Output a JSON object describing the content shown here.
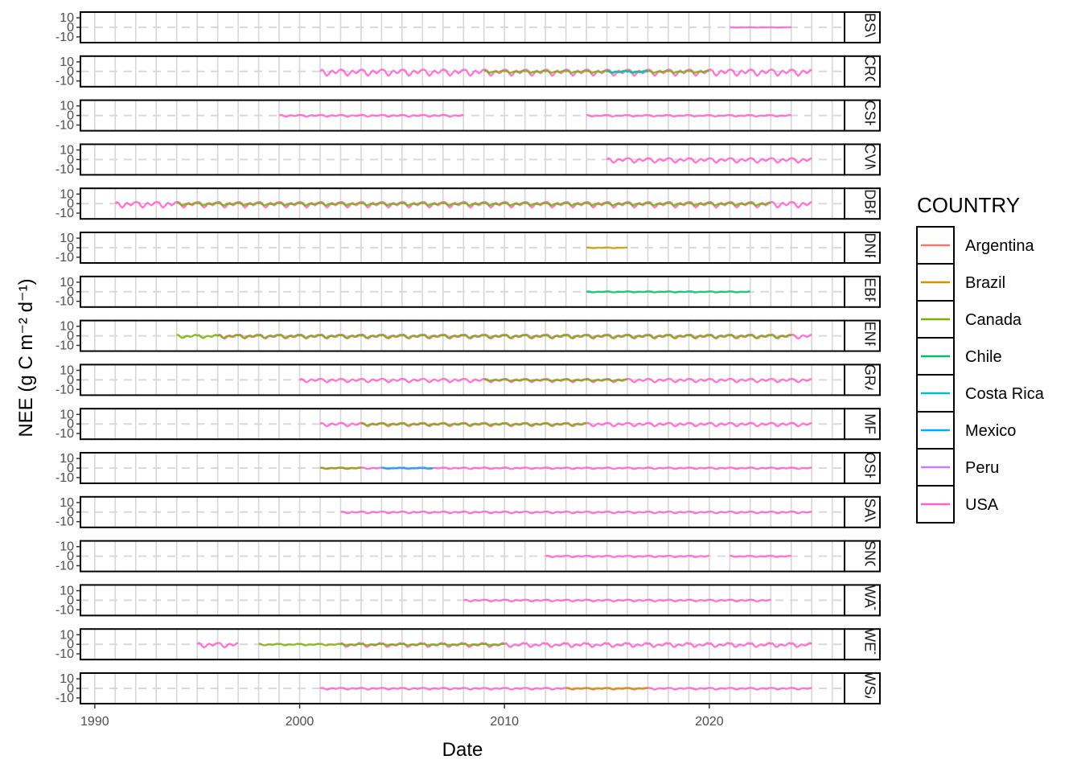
{
  "chart_data": {
    "type": "line",
    "facet_by": "vegetation_type",
    "facets": [
      "BSV",
      "CRO",
      "CSH",
      "CVM",
      "DBF",
      "DNF",
      "EBF",
      "ENF",
      "GRA",
      "MF",
      "OSH",
      "SAV",
      "SNO",
      "WAT",
      "WET",
      "WSA"
    ],
    "xlabel": "Date",
    "ylabel": "NEE (g C m⁻² d⁻¹)",
    "xlim": [
      1989.3,
      2026.6
    ],
    "x_ticks": [
      1990,
      2000,
      2010,
      2020
    ],
    "x_tick_labels": [
      "1990",
      "2000",
      "2010",
      "2020"
    ],
    "ylim": [
      -16,
      16
    ],
    "y_ticks": [
      10,
      0,
      -10
    ],
    "y_tick_labels": [
      "10",
      "0",
      "-10"
    ],
    "reference_line_y": 0,
    "grid": true,
    "legend": {
      "title": "COUNTRY",
      "position": "right",
      "entries": [
        {
          "name": "Argentina",
          "color": "#F8766D"
        },
        {
          "name": "Brazil",
          "color": "#CD9600"
        },
        {
          "name": "Canada",
          "color": "#7CAE00"
        },
        {
          "name": "Chile",
          "color": "#00BE67"
        },
        {
          "name": "Costa Rica",
          "color": "#00BFC4"
        },
        {
          "name": "Mexico",
          "color": "#00A9FF"
        },
        {
          "name": "Peru",
          "color": "#C77CFF"
        },
        {
          "name": "USA",
          "color": "#FF61CC"
        }
      ]
    },
    "series": [
      {
        "facet": "BSV",
        "country": "USA",
        "segments": [
          [
            2021.0,
            2024.0
          ]
        ],
        "amplitude": 0.3
      },
      {
        "facet": "CRO",
        "country": "USA",
        "segments": [
          [
            2001.0,
            2025.0
          ]
        ],
        "amplitude": 5.5
      },
      {
        "facet": "CRO",
        "country": "Canada",
        "segments": [
          [
            2009.0,
            2020.0
          ]
        ],
        "amplitude": 2.0
      },
      {
        "facet": "CRO",
        "country": "Costa Rica",
        "segments": [
          [
            2015.0,
            2017.0
          ]
        ],
        "amplitude": 2.0
      },
      {
        "facet": "CSH",
        "country": "USA",
        "segments": [
          [
            1999.0,
            2008.0
          ],
          [
            2014.0,
            2024.0
          ]
        ],
        "amplitude": 1.5
      },
      {
        "facet": "CVM",
        "country": "USA",
        "segments": [
          [
            2015.0,
            2025.0
          ]
        ],
        "amplitude": 4.0
      },
      {
        "facet": "DBF",
        "country": "USA",
        "segments": [
          [
            1991.0,
            2025.0
          ]
        ],
        "amplitude": 5.0
      },
      {
        "facet": "DBF",
        "country": "Canada",
        "segments": [
          [
            1994.0,
            2023.0
          ]
        ],
        "amplitude": 2.5
      },
      {
        "facet": "DNF",
        "country": "Brazil",
        "segments": [
          [
            2014.0,
            2016.0
          ]
        ],
        "amplitude": 0.6
      },
      {
        "facet": "EBF",
        "country": "Chile",
        "segments": [
          [
            2014.0,
            2022.0
          ]
        ],
        "amplitude": 0.8
      },
      {
        "facet": "ENF",
        "country": "USA",
        "segments": [
          [
            1996.0,
            2025.0
          ]
        ],
        "amplitude": 3.5
      },
      {
        "facet": "ENF",
        "country": "Canada",
        "segments": [
          [
            1994.0,
            2024.0
          ]
        ],
        "amplitude": 3.0
      },
      {
        "facet": "GRA",
        "country": "USA",
        "segments": [
          [
            2000.0,
            2025.0
          ]
        ],
        "amplitude": 3.0
      },
      {
        "facet": "GRA",
        "country": "Canada",
        "segments": [
          [
            2009.0,
            2016.0
          ]
        ],
        "amplitude": 1.5
      },
      {
        "facet": "MF",
        "country": "USA",
        "segments": [
          [
            2001.0,
            2025.0
          ]
        ],
        "amplitude": 3.0
      },
      {
        "facet": "MF",
        "country": "Canada",
        "segments": [
          [
            2003.0,
            2014.0
          ]
        ],
        "amplitude": 2.0
      },
      {
        "facet": "OSH",
        "country": "USA",
        "segments": [
          [
            2001.0,
            2025.0
          ]
        ],
        "amplitude": 1.2
      },
      {
        "facet": "OSH",
        "country": "Canada",
        "segments": [
          [
            2001.0,
            2003.0
          ]
        ],
        "amplitude": 1.0
      },
      {
        "facet": "OSH",
        "country": "Mexico",
        "segments": [
          [
            2004.0,
            2006.5
          ]
        ],
        "amplitude": 1.0
      },
      {
        "facet": "SAV",
        "country": "USA",
        "segments": [
          [
            2002.0,
            2025.0
          ]
        ],
        "amplitude": 1.5
      },
      {
        "facet": "SNO",
        "country": "USA",
        "segments": [
          [
            2012.0,
            2020.0
          ],
          [
            2021.0,
            2024.0
          ]
        ],
        "amplitude": 1.2
      },
      {
        "facet": "WAT",
        "country": "USA",
        "segments": [
          [
            2008.0,
            2023.0
          ]
        ],
        "amplitude": 1.5
      },
      {
        "facet": "WET",
        "country": "USA",
        "segments": [
          [
            1995.0,
            1997.0
          ],
          [
            2002.0,
            2025.0
          ]
        ],
        "amplitude": 4.0
      },
      {
        "facet": "WET",
        "country": "Canada",
        "segments": [
          [
            1998.0,
            2010.0
          ]
        ],
        "amplitude": 1.5
      },
      {
        "facet": "WSA",
        "country": "USA",
        "segments": [
          [
            2001.0,
            2025.0
          ]
        ],
        "amplitude": 1.5
      },
      {
        "facet": "WSA",
        "country": "Brazil",
        "segments": [
          [
            2013.0,
            2017.0
          ]
        ],
        "amplitude": 1.0
      }
    ]
  }
}
